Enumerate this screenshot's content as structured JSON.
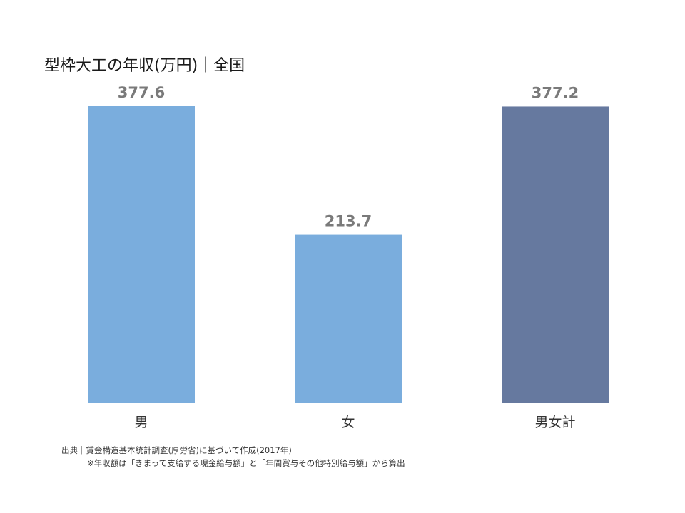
{
  "chart_data": {
    "type": "bar",
    "title": "型枠大工の年収(万円)｜全国",
    "categories": [
      "男",
      "女",
      "男女計"
    ],
    "values": [
      377.6,
      213.7,
      377.2
    ],
    "value_labels": [
      "377.6",
      "213.7",
      "377.2"
    ],
    "colors": [
      "#7aaddd",
      "#7aaddd",
      "#66799f"
    ],
    "ylim": [
      0,
      377.6
    ],
    "grid": false,
    "legend": "none"
  },
  "footnotes": {
    "source": "出典｜賃金構造基本統計調査(厚労省)に基づいて作成(2017年)",
    "note": "※年収額は「きまって支給する現金給与額」と「年間賞与その他特別給与額」から算出"
  }
}
